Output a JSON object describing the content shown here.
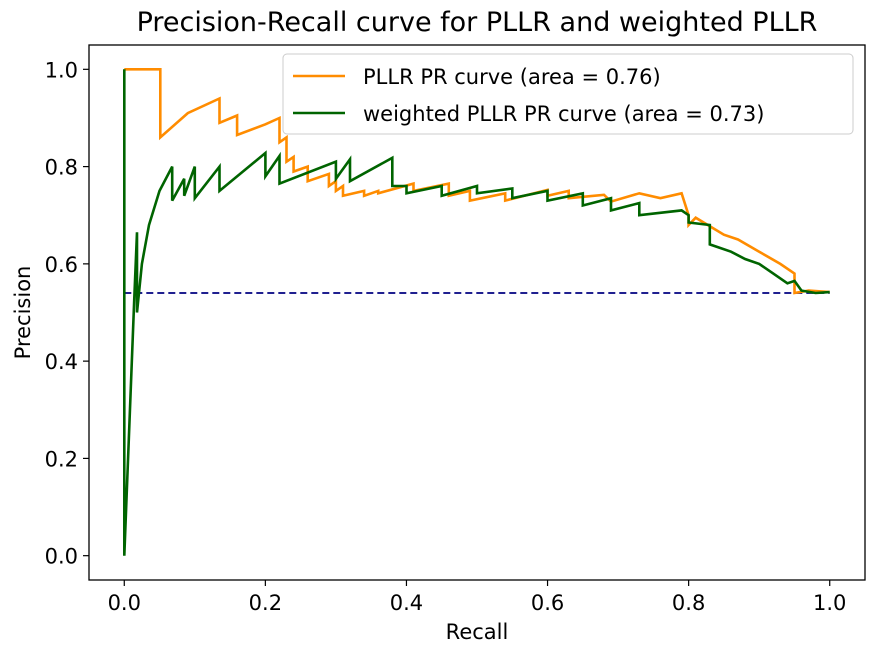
{
  "chart_data": {
    "type": "line",
    "title": "Precision-Recall curve for PLLR and weighted PLLR",
    "xlabel": "Recall",
    "ylabel": "Precision",
    "xlim": [
      -0.05,
      1.05
    ],
    "ylim": [
      -0.05,
      1.05
    ],
    "xticks": [
      0.0,
      0.2,
      0.4,
      0.6,
      0.8,
      1.0
    ],
    "xtick_labels": [
      "0.0",
      "0.2",
      "0.4",
      "0.6",
      "0.8",
      "1.0"
    ],
    "yticks": [
      0.0,
      0.2,
      0.4,
      0.6,
      0.8,
      1.0
    ],
    "ytick_labels": [
      "0.0",
      "0.2",
      "0.4",
      "0.6",
      "0.8",
      "1.0"
    ],
    "grid": false,
    "legend_position": "upper right",
    "series": [
      {
        "name": "PLLR PR curve (area = 0.76)",
        "color": "#ff8c00",
        "x": [
          0.0,
          0.0,
          0.051,
          0.051,
          0.09,
          0.135,
          0.135,
          0.16,
          0.16,
          0.2,
          0.22,
          0.22,
          0.23,
          0.23,
          0.24,
          0.24,
          0.26,
          0.26,
          0.29,
          0.29,
          0.3,
          0.3,
          0.31,
          0.31,
          0.34,
          0.34,
          0.36,
          0.36,
          0.41,
          0.41,
          0.46,
          0.46,
          0.49,
          0.49,
          0.54,
          0.54,
          0.6,
          0.6,
          0.63,
          0.63,
          0.68,
          0.69,
          0.73,
          0.76,
          0.79,
          0.8,
          0.8,
          0.81,
          0.85,
          0.87,
          0.9,
          0.93,
          0.95,
          0.95,
          0.97,
          1.0
        ],
        "y": [
          1.0,
          1.0,
          1.0,
          0.86,
          0.91,
          0.94,
          0.89,
          0.905,
          0.865,
          0.887,
          0.9,
          0.85,
          0.86,
          0.81,
          0.82,
          0.79,
          0.8,
          0.77,
          0.785,
          0.76,
          0.77,
          0.75,
          0.76,
          0.74,
          0.75,
          0.74,
          0.75,
          0.745,
          0.765,
          0.75,
          0.765,
          0.74,
          0.75,
          0.73,
          0.745,
          0.73,
          0.752,
          0.74,
          0.75,
          0.735,
          0.742,
          0.728,
          0.745,
          0.735,
          0.745,
          0.7,
          0.68,
          0.695,
          0.66,
          0.65,
          0.625,
          0.6,
          0.58,
          0.54,
          0.545,
          0.542
        ]
      },
      {
        "name": "weighted PLLR PR curve (area = 0.73)",
        "color": "#006400",
        "x": [
          0.0,
          0.0,
          0.0,
          0.014,
          0.018,
          0.018,
          0.025,
          0.035,
          0.05,
          0.068,
          0.068,
          0.085,
          0.085,
          0.1,
          0.1,
          0.135,
          0.135,
          0.2,
          0.2,
          0.22,
          0.22,
          0.3,
          0.3,
          0.32,
          0.32,
          0.38,
          0.38,
          0.4,
          0.4,
          0.45,
          0.45,
          0.5,
          0.5,
          0.55,
          0.55,
          0.6,
          0.6,
          0.65,
          0.65,
          0.69,
          0.69,
          0.73,
          0.73,
          0.79,
          0.8,
          0.8,
          0.83,
          0.83,
          0.86,
          0.88,
          0.9,
          0.92,
          0.94,
          0.95,
          0.96,
          0.98,
          1.0
        ],
        "y": [
          1.0,
          0.54,
          0.0,
          0.52,
          0.665,
          0.5,
          0.6,
          0.68,
          0.75,
          0.8,
          0.73,
          0.775,
          0.74,
          0.8,
          0.735,
          0.8,
          0.75,
          0.828,
          0.78,
          0.822,
          0.765,
          0.81,
          0.775,
          0.815,
          0.77,
          0.818,
          0.76,
          0.76,
          0.745,
          0.76,
          0.74,
          0.76,
          0.745,
          0.755,
          0.735,
          0.75,
          0.73,
          0.745,
          0.72,
          0.735,
          0.71,
          0.725,
          0.7,
          0.71,
          0.7,
          0.685,
          0.68,
          0.64,
          0.625,
          0.61,
          0.6,
          0.58,
          0.56,
          0.565,
          0.545,
          0.54,
          0.542
        ]
      },
      {
        "name": "",
        "color": "#000080",
        "dashed": true,
        "x": [
          0.0,
          1.0
        ],
        "y": [
          0.54,
          0.54
        ]
      }
    ]
  }
}
